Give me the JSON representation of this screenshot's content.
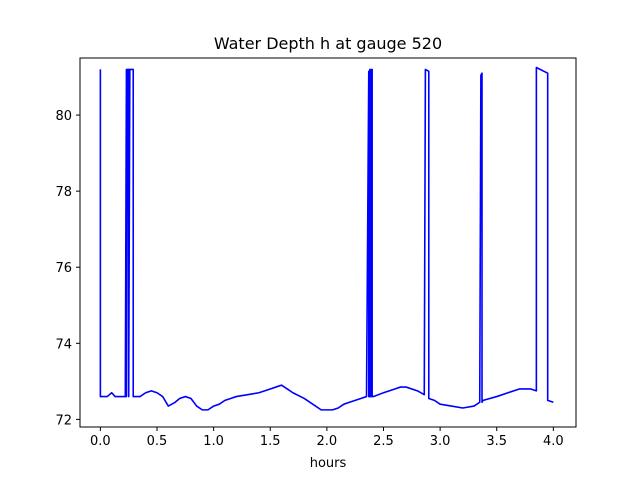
{
  "chart_data": {
    "type": "line",
    "title": "Water Depth h at gauge 520",
    "xlabel": "hours",
    "ylabel": "",
    "xlim": [
      -0.18,
      4.2
    ],
    "ylim": [
      71.8,
      81.5
    ],
    "xticks": [
      0.0,
      0.5,
      1.0,
      1.5,
      2.0,
      2.5,
      3.0,
      3.5,
      4.0
    ],
    "xtick_labels": [
      "0.0",
      "0.5",
      "1.0",
      "1.5",
      "2.0",
      "2.5",
      "3.0",
      "3.5",
      "4.0"
    ],
    "yticks": [
      72,
      74,
      76,
      78,
      80
    ],
    "ytick_labels": [
      "72",
      "74",
      "76",
      "78",
      "80"
    ],
    "grid": false,
    "series": [
      {
        "color": "#0000ff",
        "x": [
          0.0,
          0.0,
          0.02,
          0.06,
          0.1,
          0.13,
          0.17,
          0.2,
          0.22,
          0.23,
          0.23,
          0.24,
          0.25,
          0.25,
          0.26,
          0.28,
          0.29,
          0.29,
          0.3,
          0.35,
          0.4,
          0.45,
          0.5,
          0.55,
          0.58,
          0.6,
          0.63,
          0.66,
          0.7,
          0.75,
          0.8,
          0.85,
          0.9,
          0.95,
          1.0,
          1.05,
          1.1,
          1.15,
          1.2,
          1.3,
          1.4,
          1.5,
          1.55,
          1.6,
          1.65,
          1.7,
          1.8,
          1.9,
          1.95,
          2.0,
          2.05,
          2.1,
          2.15,
          2.2,
          2.3,
          2.35,
          2.37,
          2.37,
          2.38,
          2.38,
          2.39,
          2.39,
          2.4,
          2.4,
          2.41,
          2.5,
          2.6,
          2.65,
          2.7,
          2.8,
          2.86,
          2.87,
          2.9,
          2.9,
          2.95,
          3.0,
          3.1,
          3.2,
          3.3,
          3.35,
          3.36,
          3.37,
          3.37,
          3.38,
          3.5,
          3.6,
          3.7,
          3.8,
          3.85,
          3.85,
          3.95,
          3.95,
          4.0
        ],
        "y": [
          81.2,
          72.6,
          72.6,
          72.6,
          72.7,
          72.6,
          72.6,
          72.6,
          72.6,
          81.2,
          72.6,
          81.2,
          81.2,
          72.6,
          81.2,
          81.2,
          81.2,
          72.6,
          72.6,
          72.6,
          72.7,
          72.75,
          72.7,
          72.6,
          72.45,
          72.35,
          72.4,
          72.45,
          72.55,
          72.6,
          72.55,
          72.35,
          72.25,
          72.25,
          72.35,
          72.4,
          72.5,
          72.55,
          72.6,
          72.65,
          72.7,
          72.8,
          72.85,
          72.9,
          72.8,
          72.7,
          72.55,
          72.35,
          72.25,
          72.25,
          72.25,
          72.3,
          72.4,
          72.45,
          72.55,
          72.6,
          81.15,
          72.6,
          81.2,
          72.6,
          81.2,
          72.6,
          81.2,
          72.6,
          72.6,
          72.7,
          72.8,
          72.85,
          72.85,
          72.75,
          72.65,
          81.2,
          81.15,
          72.55,
          72.5,
          72.4,
          72.35,
          72.3,
          72.35,
          72.45,
          81.05,
          81.1,
          72.45,
          72.5,
          72.6,
          72.7,
          72.8,
          72.8,
          72.75,
          81.25,
          81.1,
          72.5,
          72.45
        ]
      }
    ]
  }
}
